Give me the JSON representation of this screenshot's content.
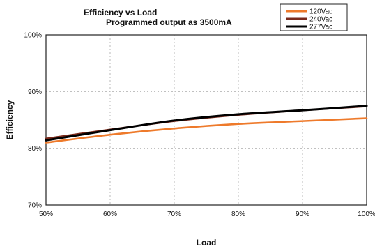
{
  "chart_data": {
    "type": "line",
    "title": "Efficiency vs Load",
    "subtitle": "Programmed output as 3500mA",
    "xlabel": "Load",
    "ylabel": "Efficiency",
    "x": [
      50,
      60,
      70,
      80,
      90,
      100
    ],
    "x_tick_labels": [
      "50%",
      "60%",
      "70%",
      "80%",
      "90%",
      "100%"
    ],
    "y_tick_labels": [
      "70%",
      "80%",
      "90%",
      "100%"
    ],
    "y_ticks": [
      70,
      80,
      90,
      100
    ],
    "xlim": [
      50,
      100
    ],
    "ylim": [
      70,
      100
    ],
    "grid": true,
    "legend_position": "top-right",
    "series": [
      {
        "name": "120Vac",
        "color": "#ee7a2b",
        "values": [
          81.0,
          82.4,
          83.5,
          84.3,
          84.8,
          85.3
        ]
      },
      {
        "name": "240Vac",
        "color": "#7a2a1c",
        "values": [
          81.7,
          83.3,
          84.8,
          85.9,
          86.7,
          87.4
        ]
      },
      {
        "name": "277Vac",
        "color": "#000000",
        "values": [
          81.4,
          83.2,
          84.9,
          86.0,
          86.7,
          87.5
        ]
      }
    ]
  }
}
